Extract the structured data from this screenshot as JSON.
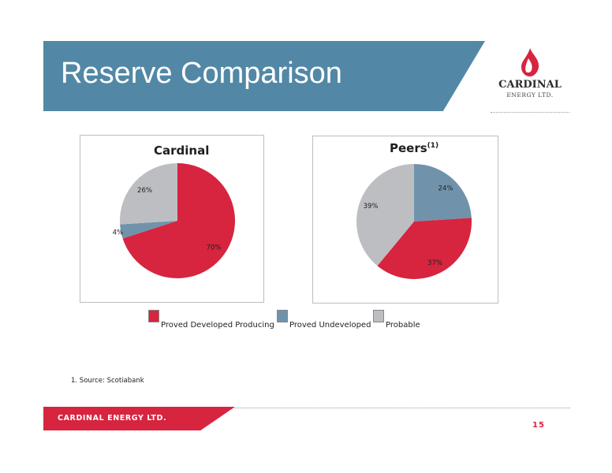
{
  "header": {
    "title": "Reserve Comparison"
  },
  "logo": {
    "name": "CARDINAL",
    "sub": "ENERGY LTD."
  },
  "colors": {
    "banner": "#5288a6",
    "accent": "#d7243f"
  },
  "chart_data": [
    {
      "type": "pie",
      "title": "Cardinal",
      "title_superscript": "",
      "labels": [
        "Proved Developed Producing",
        "Proved Undeveloped",
        "Probable"
      ],
      "values": [
        70,
        4,
        26
      ],
      "value_labels": [
        "70%",
        "4%",
        "26%"
      ],
      "colors": [
        "#d7243f",
        "#7093ab",
        "#bdbec2"
      ]
    },
    {
      "type": "pie",
      "title": "Peers",
      "title_superscript": "(1)",
      "labels": [
        "Proved Developed Producing",
        "Proved Undeveloped",
        "Probable"
      ],
      "values": [
        37,
        24,
        39
      ],
      "value_labels": [
        "37%",
        "24%",
        "39%"
      ],
      "colors": [
        "#d7243f",
        "#7093ab",
        "#bdbec2"
      ]
    }
  ],
  "legend": [
    {
      "label": "Proved Developed Producing",
      "color": "#d7243f"
    },
    {
      "label": "Proved Undeveloped",
      "color": "#7093ab"
    },
    {
      "label": "Probable",
      "color": "#bdbec2"
    }
  ],
  "footnote": "1. Source: Scotiabank",
  "footer": {
    "company": "CARDINAL ENERGY LTD.",
    "page": "15"
  }
}
